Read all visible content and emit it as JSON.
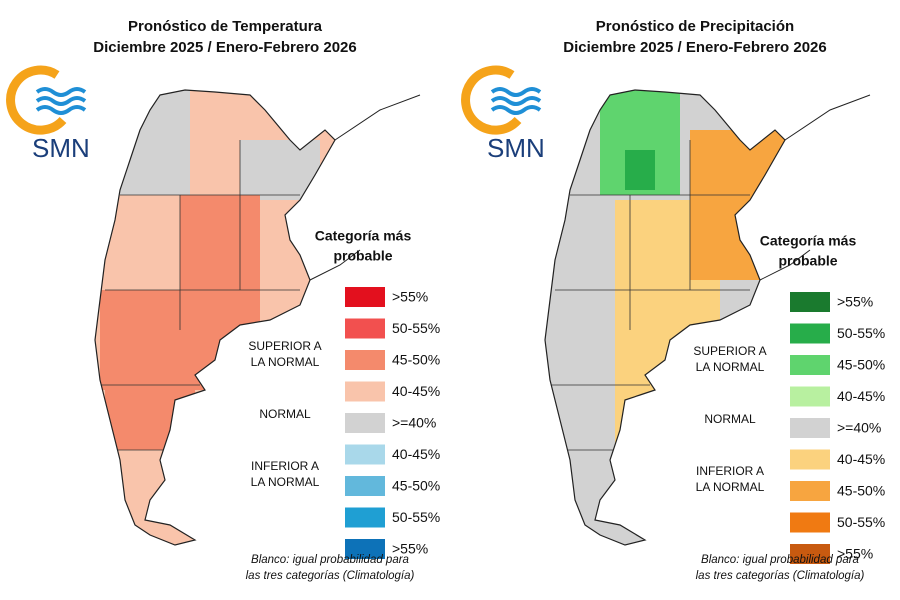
{
  "panels": [
    {
      "title_line1": "Pronóstico de Temperatura",
      "title_line2": "Diciembre 2025 / Enero-Febrero 2026",
      "logo_text": "SMN",
      "legend_title_line1": "Categoría más",
      "legend_title_line2": "probable",
      "legend": [
        {
          "label": ">55%",
          "color": "#e3101e"
        },
        {
          "label": "50-55%",
          "color": "#f2504f"
        },
        {
          "label": "45-50%",
          "color": "#f48a6c"
        },
        {
          "label": "40-45%",
          "color": "#f9c4ab"
        },
        {
          "label": ">=40%",
          "color": "#d2d2d2"
        },
        {
          "label": "40-45%",
          "color": "#a9d8ea"
        },
        {
          "label": "45-50%",
          "color": "#62b8dc"
        },
        {
          "label": "50-55%",
          "color": "#1f9fd3"
        },
        {
          "label": ">55%",
          "color": "#0d72b8"
        }
      ],
      "groups": [
        {
          "line1": "SUPERIOR A",
          "line2": "LA NORMAL"
        },
        {
          "line1": "NORMAL"
        },
        {
          "line1": "INFERIOR A",
          "line2": "LA NORMAL"
        }
      ],
      "footnote_line1": "Blanco: igual probabilidad para",
      "footnote_line2": "las tres categorías (Climatología)"
    },
    {
      "title_line1": "Pronóstico de Precipitación",
      "title_line2": "Diciembre 2025 / Enero-Febrero 2026",
      "logo_text": "SMN",
      "legend_title_line1": "Categoría más",
      "legend_title_line2": "probable",
      "legend": [
        {
          "label": ">55%",
          "color": "#1a7a2e"
        },
        {
          "label": "50-55%",
          "color": "#27ad4a"
        },
        {
          "label": "45-50%",
          "color": "#5fd46e"
        },
        {
          "label": "40-45%",
          "color": "#b8f0a0"
        },
        {
          "label": ">=40%",
          "color": "#d2d2d2"
        },
        {
          "label": "40-45%",
          "color": "#fbd27e"
        },
        {
          "label": "45-50%",
          "color": "#f7a540"
        },
        {
          "label": "50-55%",
          "color": "#f07a12"
        },
        {
          "label": ">55%",
          "color": "#c85a10"
        }
      ],
      "groups": [
        {
          "line1": "SUPERIOR A",
          "line2": "LA NORMAL"
        },
        {
          "line1": "NORMAL"
        },
        {
          "line1": "INFERIOR A",
          "line2": "LA NORMAL"
        }
      ],
      "footnote_line1": "Blanco: igual probabilidad para",
      "footnote_line2": "las tres categorías (Climatología)"
    }
  ]
}
